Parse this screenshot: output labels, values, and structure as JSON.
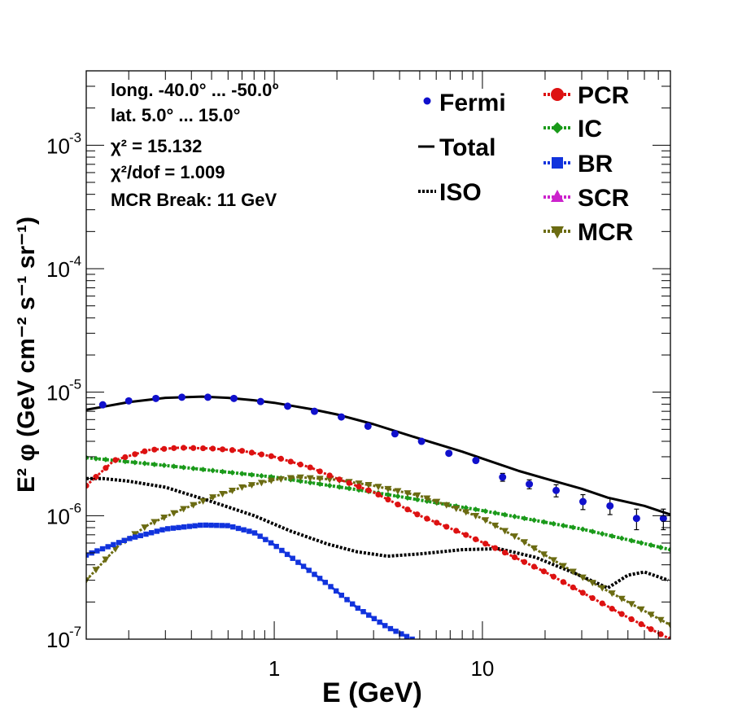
{
  "chart_data": {
    "type": "line",
    "xscale": "log",
    "yscale": "log",
    "xlim": [
      0.125,
      80
    ],
    "ylim": [
      1e-07,
      0.004
    ],
    "xlabel": "E (GeV)",
    "ylabel": "E² φ (GeV cm⁻² s⁻¹ sr⁻¹)",
    "x_ticklabels": [
      {
        "v": 1,
        "label": "1"
      },
      {
        "v": 10,
        "label": "10"
      }
    ],
    "y_ticklabels": [
      {
        "v": 1e-07,
        "base": "10",
        "exp": "-7"
      },
      {
        "v": 1e-06,
        "base": "10",
        "exp": "-6"
      },
      {
        "v": 1e-05,
        "base": "10",
        "exp": "-5"
      },
      {
        "v": 0.0001,
        "base": "10",
        "exp": "-4"
      },
      {
        "v": 0.001,
        "base": "10",
        "exp": "-3"
      }
    ],
    "info_lines": [
      "long. -40.0° ... -50.0°",
      "lat. 5.0° ... 15.0°",
      "χ² = 15.132",
      "χ²/dof = 1.009",
      "MCR Break: 11 GeV"
    ],
    "legend_left": [
      "Fermi",
      "Total",
      "ISO"
    ],
    "legend_right": [
      "PCR",
      "IC",
      "BR",
      "SCR",
      "MCR"
    ],
    "fermi": {
      "name": "Fermi",
      "color": "#1010cc",
      "x": [
        0.15,
        0.2,
        0.27,
        0.36,
        0.48,
        0.64,
        0.86,
        1.16,
        1.56,
        2.1,
        2.82,
        3.8,
        5.1,
        6.9,
        9.3,
        12.5,
        16.8,
        22.6,
        30.4,
        41,
        55,
        74
      ],
      "y": [
        7.9e-06,
        8.5e-06,
        8.9e-06,
        9.1e-06,
        9.1e-06,
        8.9e-06,
        8.4e-06,
        7.7e-06,
        7e-06,
        6.3e-06,
        5.3e-06,
        4.6e-06,
        4e-06,
        3.2e-06,
        2.8e-06,
        2.05e-06,
        1.8e-06,
        1.6e-06,
        1.3e-06,
        1.2e-06,
        9.5e-07,
        9.5e-07
      ],
      "err": [
        0,
        0,
        0,
        0,
        0,
        0,
        0,
        0,
        0,
        0,
        0,
        0,
        0,
        0,
        0,
        1.5e-07,
        1.5e-07,
        1.8e-07,
        1.8e-07,
        1.8e-07,
        1.8e-07,
        1.8e-07
      ]
    },
    "total": {
      "name": "Total",
      "color": "#000000",
      "x": [
        0.125,
        0.2,
        0.3,
        0.45,
        0.6,
        0.8,
        1,
        1.5,
        2,
        3,
        5,
        8,
        10,
        15,
        20,
        30,
        40,
        60,
        80
      ],
      "y": [
        7.2e-06,
        8.3e-06,
        9e-06,
        9.2e-06,
        9e-06,
        8.6e-06,
        8.2e-06,
        7.3e-06,
        6.6e-06,
        5.5e-06,
        4.2e-06,
        3.3e-06,
        2.9e-06,
        2.3e-06,
        2e-06,
        1.65e-06,
        1.4e-06,
        1.2e-06,
        1.02e-06
      ]
    },
    "iso": {
      "name": "ISO",
      "color": "#000000",
      "x": [
        0.125,
        0.15,
        0.2,
        0.3,
        0.5,
        0.8,
        1.2,
        1.8,
        2.5,
        3.5,
        5,
        8,
        12,
        18,
        28,
        40,
        50,
        60,
        78
      ],
      "y": [
        2e-06,
        2e-06,
        1.9e-06,
        1.7e-06,
        1.3e-06,
        1e-06,
        7.5e-07,
        5.9e-07,
        5.1e-07,
        4.7e-07,
        4.9e-07,
        5.3e-07,
        5.4e-07,
        4.6e-07,
        3.4e-07,
        2.6e-07,
        3.3e-07,
        3.5e-07,
        3e-07
      ]
    },
    "pcr": {
      "name": "PCR",
      "color": "#dd1111",
      "x": [
        0.125,
        0.17,
        0.25,
        0.35,
        0.5,
        0.7,
        1,
        1.5,
        2,
        3,
        5,
        8,
        12,
        20,
        30,
        50,
        80
      ],
      "y": [
        1.75e-06,
        2.8e-06,
        3.4e-06,
        3.55e-06,
        3.5e-06,
        3.35e-06,
        3e-06,
        2.45e-06,
        2e-06,
        1.55e-06,
        1e-06,
        7.2e-07,
        5.3e-07,
        3.5e-07,
        2.4e-07,
        1.5e-07,
        1e-07
      ]
    },
    "ic": {
      "name": "IC",
      "color": "#1a9a1a",
      "x": [
        0.125,
        0.3,
        1,
        3,
        10,
        30,
        80
      ],
      "y": [
        2.95e-06,
        2.55e-06,
        2.05e-06,
        1.55e-06,
        1.1e-06,
        7.8e-07,
        5.3e-07
      ]
    },
    "br": {
      "name": "BR",
      "color": "#1133dd",
      "x": [
        0.125,
        0.2,
        0.3,
        0.45,
        0.6,
        0.8,
        1,
        1.3,
        1.8,
        2.5,
        3.5,
        4.6
      ],
      "y": [
        4.8e-07,
        6.5e-07,
        7.8e-07,
        8.4e-07,
        8.3e-07,
        7.3e-07,
        5.8e-07,
        4.2e-07,
        2.8e-07,
        1.8e-07,
        1.25e-07,
        1e-07
      ]
    },
    "mcr": {
      "name": "MCR",
      "color": "#6b6b12",
      "x": [
        0.125,
        0.18,
        0.25,
        0.35,
        0.5,
        0.7,
        1,
        1.3,
        2,
        3,
        5,
        8,
        10,
        15,
        20,
        30,
        50,
        80
      ],
      "y": [
        3e-07,
        5.8e-07,
        8.5e-07,
        1.1e-06,
        1.4e-06,
        1.7e-06,
        1.95e-06,
        2.05e-06,
        1.95e-06,
        1.75e-06,
        1.45e-06,
        1.1e-06,
        9.5e-07,
        6.5e-07,
        4.8e-07,
        3.2e-07,
        2e-07,
        1.3e-07
      ]
    }
  }
}
